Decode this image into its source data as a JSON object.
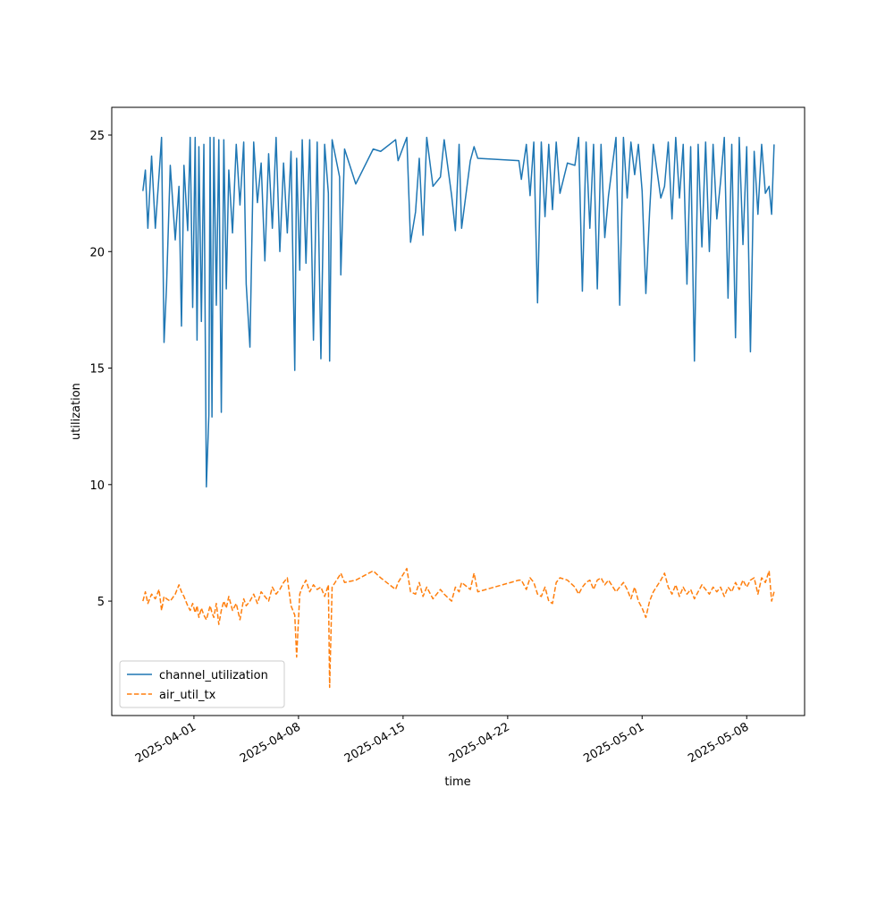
{
  "chart_data": {
    "type": "line",
    "xlabel": "time",
    "ylabel": "utilization",
    "x": [
      "2025-03-28T14:00",
      "2025-03-28T18:00",
      "2025-03-28T22:00",
      "2025-03-29T04:00",
      "2025-03-29T10:00",
      "2025-03-29T16:00",
      "2025-03-29T20:00",
      "2025-03-30T00:00",
      "2025-03-30T04:00",
      "2025-03-30T10:00",
      "2025-03-30T18:00",
      "2025-03-31T00:00",
      "2025-03-31T04:00",
      "2025-03-31T08:00",
      "2025-03-31T14:00",
      "2025-03-31T18:00",
      "2025-03-31T22:00",
      "2025-04-01T02:00",
      "2025-04-01T05:00",
      "2025-04-01T08:00",
      "2025-04-01T12:00",
      "2025-04-01T16:00",
      "2025-04-01T20:00",
      "2025-04-02T00:00",
      "2025-04-02T02:00",
      "2025-04-02T05:00",
      "2025-04-02T08:00",
      "2025-04-02T12:00",
      "2025-04-02T16:00",
      "2025-04-02T20:00",
      "2025-04-03T00:00",
      "2025-04-03T04:00",
      "2025-04-03T08:00",
      "2025-04-03T14:00",
      "2025-04-03T20:00",
      "2025-04-04T02:00",
      "2025-04-04T08:00",
      "2025-04-04T12:00",
      "2025-04-04T18:00",
      "2025-04-05T00:00",
      "2025-04-05T06:00",
      "2025-04-05T12:00",
      "2025-04-05T18:00",
      "2025-04-06T00:00",
      "2025-04-06T06:00",
      "2025-04-06T12:00",
      "2025-04-06T18:00",
      "2025-04-07T00:00",
      "2025-04-07T06:00",
      "2025-04-07T12:00",
      "2025-04-07T18:00",
      "2025-04-07T21:00",
      "2025-04-08T02:00",
      "2025-04-08T06:00",
      "2025-04-08T12:00",
      "2025-04-08T18:00",
      "2025-04-09T00:00",
      "2025-04-09T06:00",
      "2025-04-09T12:00",
      "2025-04-09T18:00",
      "2025-04-10T00:00",
      "2025-04-10T02:00",
      "2025-04-10T06:00",
      "2025-04-10T18:00",
      "2025-04-10T20:00",
      "2025-04-11T02:00",
      "2025-04-11T20:00",
      "2025-04-13T00:00",
      "2025-04-13T12:00",
      "2025-04-14T12:00",
      "2025-04-14T16:00",
      "2025-04-15T06:00",
      "2025-04-15T12:00",
      "2025-04-15T20:00",
      "2025-04-16T02:00",
      "2025-04-16T08:00",
      "2025-04-16T14:00",
      "2025-04-17T00:00",
      "2025-04-17T12:00",
      "2025-04-17T18:00",
      "2025-04-18T06:00",
      "2025-04-18T12:00",
      "2025-04-18T18:00",
      "2025-04-18T22:00",
      "2025-04-19T12:00",
      "2025-04-19T18:00",
      "2025-04-20T00:00",
      "2025-04-22T18:00",
      "2025-04-22T22:00",
      "2025-04-23T06:00",
      "2025-04-23T12:00",
      "2025-04-23T18:00",
      "2025-04-24T00:00",
      "2025-04-24T06:00",
      "2025-04-24T12:00",
      "2025-04-24T18:00",
      "2025-04-25T00:00",
      "2025-04-25T06:00",
      "2025-04-25T12:00",
      "2025-04-26T00:00",
      "2025-04-26T12:00",
      "2025-04-26T18:00",
      "2025-04-27T00:00",
      "2025-04-27T06:00",
      "2025-04-27T12:00",
      "2025-04-27T18:00",
      "2025-04-28T00:00",
      "2025-04-28T06:00",
      "2025-04-28T12:00",
      "2025-04-28T18:00",
      "2025-04-29T06:00",
      "2025-04-29T12:00",
      "2025-04-29T18:00",
      "2025-04-30T00:00",
      "2025-04-30T06:00",
      "2025-04-30T12:00",
      "2025-04-30T18:00",
      "2025-05-01T00:00",
      "2025-05-01T06:00",
      "2025-05-01T12:00",
      "2025-05-01T18:00",
      "2025-05-02T06:00",
      "2025-05-02T12:00",
      "2025-05-02T18:00",
      "2025-05-03T00:00",
      "2025-05-03T06:00",
      "2025-05-03T12:00",
      "2025-05-03T18:00",
      "2025-05-04T00:00",
      "2025-05-04T06:00",
      "2025-05-04T12:00",
      "2025-05-04T18:00",
      "2025-05-05T00:00",
      "2025-05-05T06:00",
      "2025-05-05T12:00",
      "2025-05-05T18:00",
      "2025-05-06T00:00",
      "2025-05-06T06:00",
      "2025-05-06T12:00",
      "2025-05-06T18:00",
      "2025-05-07T00:00",
      "2025-05-07T06:00",
      "2025-05-07T12:00",
      "2025-05-07T18:00",
      "2025-05-08T00:00",
      "2025-05-08T06:00",
      "2025-05-08T12:00",
      "2025-05-08T18:00",
      "2025-05-09T00:00",
      "2025-05-09T06:00",
      "2025-05-09T12:00",
      "2025-05-09T16:00",
      "2025-05-09T20:00"
    ],
    "series": [
      {
        "name": "channel_utilization",
        "color": "#1f77b4",
        "linestyle": "solid",
        "values": [
          22.6,
          23.5,
          21.0,
          24.1,
          21.0,
          23.3,
          24.9,
          16.1,
          18.5,
          23.7,
          20.5,
          22.8,
          16.8,
          23.7,
          20.9,
          24.9,
          17.6,
          24.9,
          16.2,
          24.5,
          17.0,
          24.6,
          9.9,
          13.0,
          24.9,
          12.9,
          24.9,
          17.7,
          24.8,
          13.1,
          24.8,
          18.4,
          23.5,
          20.8,
          24.6,
          22.0,
          24.7,
          18.6,
          15.9,
          24.7,
          22.1,
          23.8,
          19.6,
          24.2,
          21.0,
          24.9,
          20.0,
          23.8,
          20.8,
          24.3,
          14.9,
          24.0,
          19.2,
          24.8,
          19.5,
          24.8,
          16.2,
          24.7,
          15.4,
          24.6,
          22.5,
          15.3,
          24.8,
          23.2,
          19.0,
          24.4,
          22.9,
          24.4,
          24.3,
          24.8,
          23.9,
          24.9,
          20.4,
          21.7,
          24.0,
          20.7,
          24.9,
          22.8,
          23.2,
          24.8,
          22.4,
          20.9,
          24.6,
          21.0,
          23.9,
          24.5,
          24.0,
          23.9,
          23.1,
          24.6,
          22.4,
          24.7,
          17.8,
          24.7,
          21.5,
          24.6,
          21.8,
          24.7,
          22.5,
          23.8,
          23.7,
          24.9,
          18.3,
          24.7,
          21.0,
          24.6,
          18.4,
          24.6,
          20.6,
          22.4,
          24.9,
          17.7,
          24.9,
          22.3,
          24.7,
          23.3,
          24.6,
          22.6,
          18.2,
          21.7,
          24.6,
          22.3,
          22.8,
          24.7,
          21.4,
          24.9,
          22.3,
          24.6,
          18.6,
          24.5,
          15.3,
          24.6,
          20.2,
          24.7,
          20.0,
          24.6,
          21.4,
          23.0,
          24.9,
          18.0,
          24.6,
          16.3,
          24.9,
          20.3,
          24.5,
          15.7,
          24.3,
          21.6,
          24.6,
          22.5,
          22.8,
          21.6,
          24.6
        ]
      },
      {
        "name": "air_util_tx",
        "color": "#ff7f0e",
        "linestyle": "dashed",
        "values": [
          5.0,
          5.4,
          4.9,
          5.3,
          5.1,
          5.5,
          4.6,
          5.2,
          5.1,
          5.0,
          5.3,
          5.7,
          5.4,
          5.2,
          4.8,
          4.6,
          4.9,
          4.5,
          4.8,
          4.3,
          4.7,
          4.4,
          4.2,
          4.6,
          4.8,
          4.5,
          4.3,
          4.9,
          4.0,
          4.6,
          5.0,
          4.7,
          5.2,
          4.6,
          4.9,
          4.2,
          5.1,
          4.8,
          5.0,
          5.3,
          4.9,
          5.4,
          5.2,
          5.0,
          5.6,
          5.3,
          5.5,
          5.8,
          6.0,
          4.8,
          4.4,
          2.6,
          5.3,
          5.6,
          5.9,
          5.4,
          5.7,
          5.5,
          5.6,
          5.2,
          5.7,
          1.3,
          5.6,
          6.1,
          6.2,
          5.8,
          5.9,
          6.3,
          6.0,
          5.5,
          5.8,
          6.4,
          5.4,
          5.3,
          5.8,
          5.2,
          5.6,
          5.1,
          5.5,
          5.3,
          5.0,
          5.6,
          5.4,
          5.8,
          5.5,
          6.2,
          5.4,
          5.9,
          5.9,
          5.5,
          6.0,
          5.8,
          5.3,
          5.2,
          5.6,
          5.0,
          4.9,
          5.8,
          6.0,
          5.9,
          5.6,
          5.3,
          5.6,
          5.8,
          5.9,
          5.5,
          5.9,
          6.0,
          5.7,
          5.9,
          5.4,
          5.6,
          5.8,
          5.5,
          5.1,
          5.6,
          5.0,
          4.7,
          4.3,
          5.0,
          5.4,
          5.9,
          6.2,
          5.6,
          5.3,
          5.7,
          5.2,
          5.6,
          5.3,
          5.5,
          5.1,
          5.4,
          5.7,
          5.5,
          5.3,
          5.6,
          5.4,
          5.6,
          5.2,
          5.6,
          5.4,
          5.8,
          5.5,
          5.9,
          5.6,
          5.9,
          6.0,
          5.3,
          6.0,
          5.8,
          6.3,
          5.0,
          5.4
        ]
      }
    ],
    "xlim": [
      "2025-03-26T12:00",
      "2025-05-11T21:00"
    ],
    "xticks": [
      "2025-04-01",
      "2025-04-08",
      "2025-04-15",
      "2025-04-22",
      "2025-05-01",
      "2025-05-08"
    ],
    "ylim": [
      0.09,
      26.19
    ],
    "yticks": [
      5,
      10,
      15,
      20,
      25
    ],
    "grid": false,
    "legend": "lower left"
  }
}
